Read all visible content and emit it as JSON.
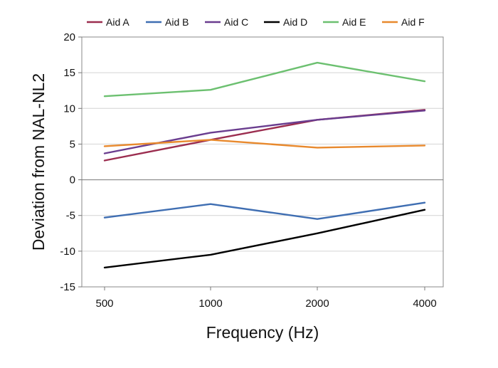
{
  "chart_data": {
    "type": "line",
    "title": "",
    "xlabel": "Frequency (Hz)",
    "ylabel": "Deviation from NAL-NL2",
    "categories": [
      "500",
      "1000",
      "2000",
      "4000"
    ],
    "ylim": [
      -15,
      20
    ],
    "yticks": [
      20,
      15,
      10,
      5,
      0,
      -5,
      -10,
      -15
    ],
    "ytick_labels": [
      "20",
      "15",
      "10",
      "5",
      "0",
      "-5",
      "-10",
      "-15"
    ],
    "grid": true,
    "legend_position": "top",
    "series": [
      {
        "name": "Aid A",
        "color": "#9b2d4f",
        "values": [
          2.7,
          5.6,
          8.4,
          9.8
        ]
      },
      {
        "name": "Aid B",
        "color": "#3f6eb2",
        "values": [
          -5.3,
          -3.4,
          -5.5,
          -3.2
        ]
      },
      {
        "name": "Aid C",
        "color": "#6a3d8f",
        "values": [
          3.7,
          6.6,
          8.4,
          9.7
        ]
      },
      {
        "name": "Aid D",
        "color": "#000000",
        "values": [
          -12.3,
          -10.5,
          -7.5,
          -4.2
        ]
      },
      {
        "name": "Aid E",
        "color": "#6cc070",
        "values": [
          11.7,
          12.6,
          16.4,
          13.8
        ]
      },
      {
        "name": "Aid F",
        "color": "#e8892d",
        "values": [
          4.7,
          5.6,
          4.5,
          4.8
        ]
      }
    ]
  }
}
